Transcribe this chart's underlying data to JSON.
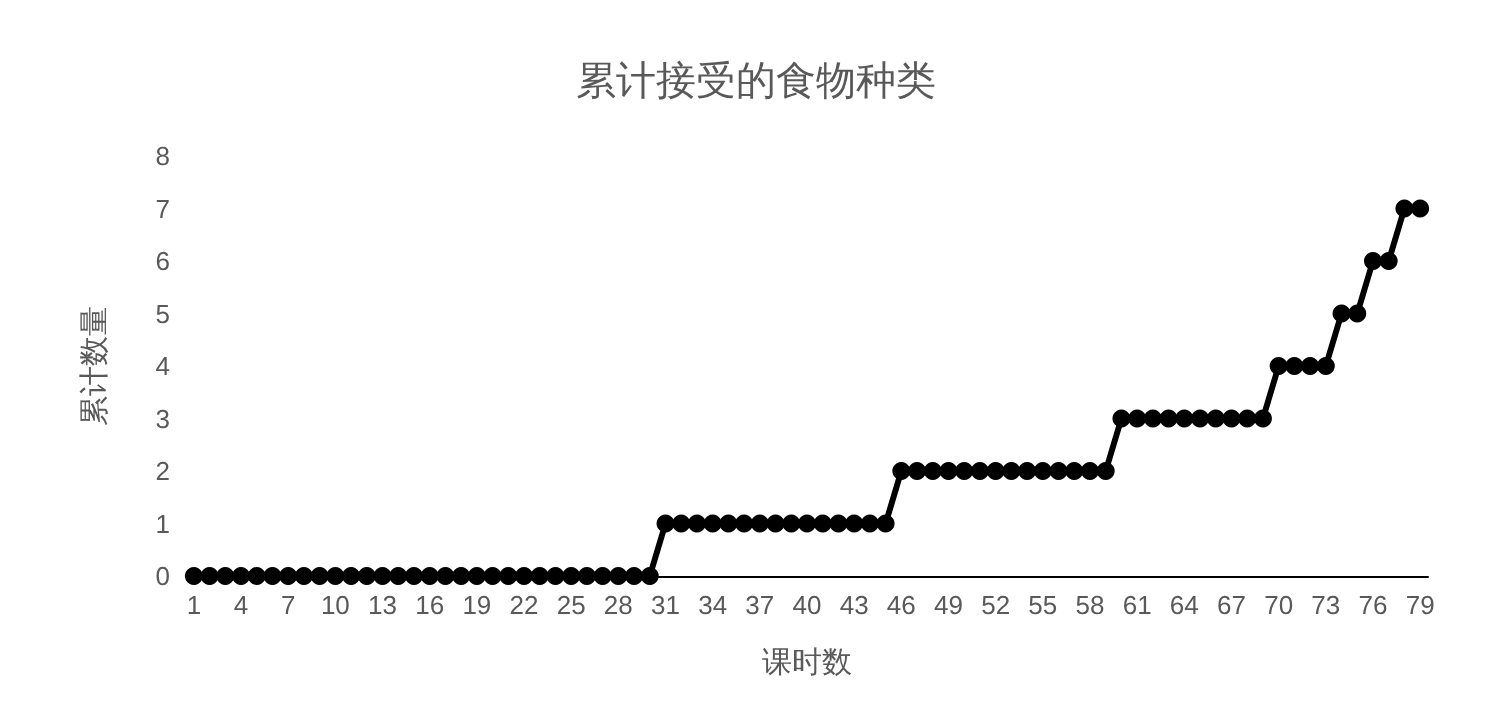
{
  "chart_data": {
    "type": "line",
    "title": "累计接受的食物种类",
    "xlabel": "课时数",
    "ylabel": "累计数量",
    "categories": [
      "1",
      null,
      null,
      "4",
      null,
      null,
      "7",
      null,
      null,
      "10",
      null,
      null,
      "13",
      null,
      null,
      "16",
      null,
      null,
      "19",
      null,
      null,
      "22",
      null,
      null,
      "25",
      null,
      null,
      "28",
      null,
      null,
      "31",
      null,
      null,
      "34",
      null,
      null,
      "37",
      null,
      null,
      "40",
      null,
      null,
      "43",
      null,
      null,
      "46",
      null,
      null,
      "49",
      null,
      null,
      "52",
      null,
      null,
      "55",
      null,
      null,
      "58",
      null,
      null,
      "61",
      null,
      null,
      "64",
      null,
      null,
      "67",
      null,
      null,
      "70",
      null,
      null,
      "73",
      null,
      null,
      "76",
      null,
      null,
      "79"
    ],
    "series": [
      {
        "color": "#000000",
        "values": [
          0,
          0,
          0,
          0,
          0,
          0,
          0,
          0,
          0,
          0,
          0,
          0,
          0,
          0,
          0,
          0,
          0,
          0,
          0,
          0,
          0,
          0,
          0,
          0,
          0,
          0,
          0,
          0,
          0,
          0,
          1,
          1,
          1,
          1,
          1,
          1,
          1,
          1,
          1,
          1,
          1,
          1,
          1,
          1,
          1,
          2,
          2,
          2,
          2,
          2,
          2,
          2,
          2,
          2,
          2,
          2,
          2,
          2,
          2,
          3,
          3,
          3,
          3,
          3,
          3,
          3,
          3,
          3,
          3,
          4,
          4,
          4,
          4,
          5,
          5,
          6,
          6,
          7,
          7
        ]
      }
    ],
    "ylim": [
      0,
      8
    ],
    "yticks": [
      0,
      1,
      2,
      3,
      4,
      5,
      6,
      7,
      8
    ],
    "grid": false,
    "marker": "circle",
    "line_style": "solid"
  }
}
